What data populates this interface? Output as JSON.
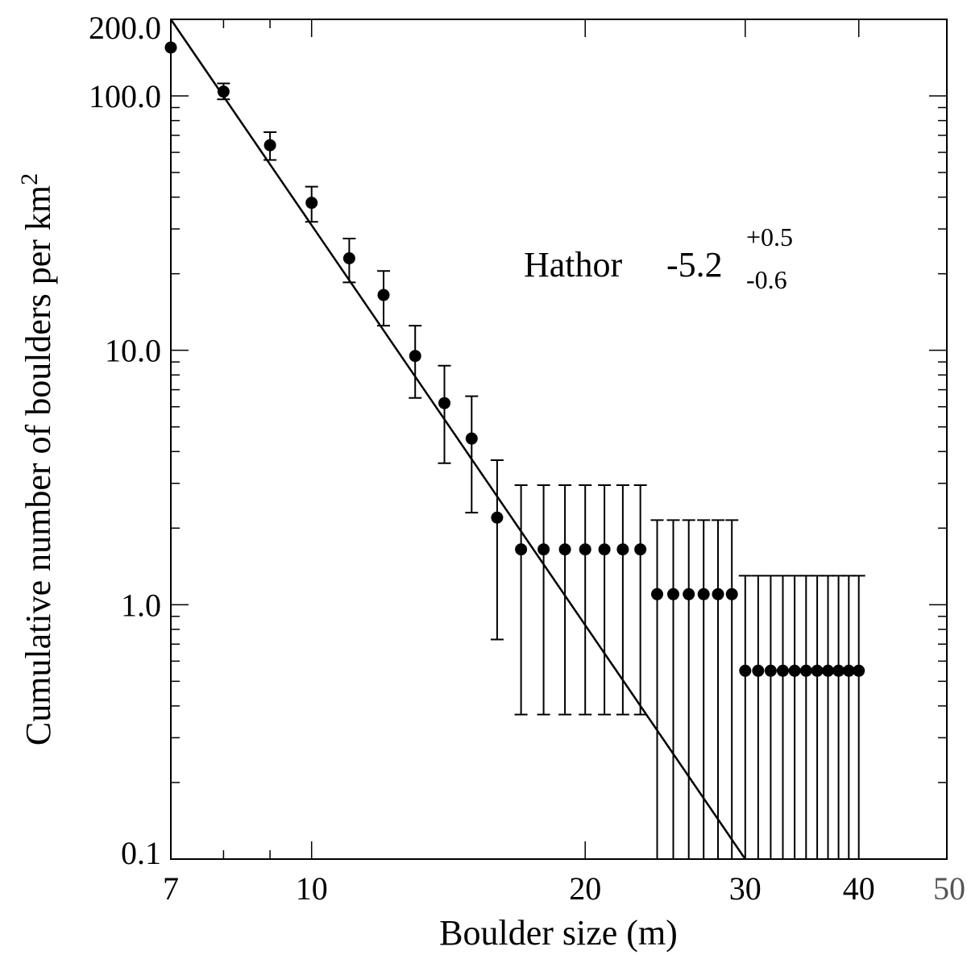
{
  "chart_data": {
    "type": "scatter",
    "title": "",
    "xlabel": "Boulder size (m)",
    "ylabel": "Cumulative number of boulders per km",
    "ylabel_superscript": "2",
    "x_scale": "log",
    "y_scale": "log",
    "xlim": [
      7,
      50
    ],
    "ylim": [
      0.1,
      200
    ],
    "x_ticks": [
      {
        "value": 7,
        "label": "7",
        "color": "#000000"
      },
      {
        "value": 10,
        "label": "10",
        "color": "#000000"
      },
      {
        "value": 20,
        "label": "20",
        "color": "#000000"
      },
      {
        "value": 30,
        "label": "30",
        "color": "#000000"
      },
      {
        "value": 40,
        "label": "40",
        "color": "#000000"
      },
      {
        "value": 50,
        "label": "50",
        "color": "#555555"
      }
    ],
    "y_ticks": [
      {
        "value": 0.1,
        "label": "0.1"
      },
      {
        "value": 1,
        "label": "1.0"
      },
      {
        "value": 10,
        "label": "10.0"
      },
      {
        "value": 100,
        "label": "100.0"
      },
      {
        "value": 200,
        "label": "200.0"
      }
    ],
    "grid": false,
    "fit_line": {
      "x": [
        7,
        30
      ],
      "y": [
        200,
        0.1
      ]
    },
    "annotation": {
      "label": "Hathor",
      "value": "-5.2",
      "upper": "+0.5",
      "lower": "-0.6"
    },
    "series": [
      {
        "points": [
          {
            "x": 7,
            "y": 155,
            "lo": null,
            "hi": null
          },
          {
            "x": 8,
            "y": 104,
            "lo": 97,
            "hi": 112
          },
          {
            "x": 9,
            "y": 64,
            "lo": 56,
            "hi": 72
          },
          {
            "x": 10,
            "y": 38,
            "lo": 32,
            "hi": 44
          },
          {
            "x": 11,
            "y": 23,
            "lo": 18.5,
            "hi": 27.5
          },
          {
            "x": 12,
            "y": 16.5,
            "lo": 12.5,
            "hi": 20.5
          },
          {
            "x": 13,
            "y": 9.5,
            "lo": 6.5,
            "hi": 12.5
          },
          {
            "x": 14,
            "y": 6.2,
            "lo": 3.6,
            "hi": 8.7
          },
          {
            "x": 15,
            "y": 4.5,
            "lo": 2.3,
            "hi": 6.6
          },
          {
            "x": 16,
            "y": 2.2,
            "lo": 0.73,
            "hi": 3.7
          },
          {
            "x": 17,
            "y": 1.65,
            "lo": 0.37,
            "hi": 2.95
          },
          {
            "x": 18,
            "y": 1.65,
            "lo": 0.37,
            "hi": 2.95
          },
          {
            "x": 19,
            "y": 1.65,
            "lo": 0.37,
            "hi": 2.95
          },
          {
            "x": 20,
            "y": 1.65,
            "lo": 0.37,
            "hi": 2.95
          },
          {
            "x": 21,
            "y": 1.65,
            "lo": 0.37,
            "hi": 2.95
          },
          {
            "x": 22,
            "y": 1.65,
            "lo": 0.37,
            "hi": 2.95
          },
          {
            "x": 23,
            "y": 1.65,
            "lo": 0.37,
            "hi": 2.95
          },
          {
            "x": 24,
            "y": 1.1,
            "lo": 0.1,
            "hi": 2.15
          },
          {
            "x": 25,
            "y": 1.1,
            "lo": 0.1,
            "hi": 2.15
          },
          {
            "x": 26,
            "y": 1.1,
            "lo": 0.1,
            "hi": 2.15
          },
          {
            "x": 27,
            "y": 1.1,
            "lo": 0.1,
            "hi": 2.15
          },
          {
            "x": 28,
            "y": 1.1,
            "lo": 0.1,
            "hi": 2.15
          },
          {
            "x": 29,
            "y": 1.1,
            "lo": 0.1,
            "hi": 2.15
          },
          {
            "x": 30,
            "y": 0.55,
            "lo": 0.1,
            "hi": 1.3
          },
          {
            "x": 31,
            "y": 0.55,
            "lo": 0.1,
            "hi": 1.3
          },
          {
            "x": 32,
            "y": 0.55,
            "lo": 0.1,
            "hi": 1.3
          },
          {
            "x": 33,
            "y": 0.55,
            "lo": 0.1,
            "hi": 1.3
          },
          {
            "x": 34,
            "y": 0.55,
            "lo": 0.1,
            "hi": 1.3
          },
          {
            "x": 35,
            "y": 0.55,
            "lo": 0.1,
            "hi": 1.3
          },
          {
            "x": 36,
            "y": 0.55,
            "lo": 0.1,
            "hi": 1.3
          },
          {
            "x": 37,
            "y": 0.55,
            "lo": 0.1,
            "hi": 1.3
          },
          {
            "x": 38,
            "y": 0.55,
            "lo": 0.1,
            "hi": 1.3
          },
          {
            "x": 39,
            "y": 0.55,
            "lo": 0.1,
            "hi": 1.3
          },
          {
            "x": 40,
            "y": 0.55,
            "lo": 0.1,
            "hi": 1.3
          }
        ]
      }
    ]
  }
}
